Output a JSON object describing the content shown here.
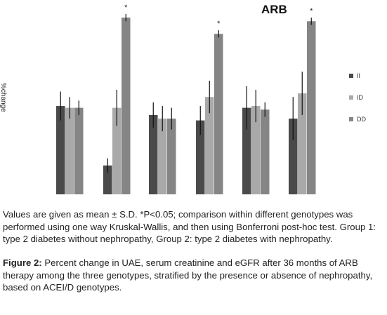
{
  "chart_data": {
    "type": "bar",
    "title": "ARB",
    "ylabel": "%change",
    "xlabel": "",
    "categories": [
      "",
      "",
      "",
      "",
      "",
      ""
    ],
    "ylim": [
      0,
      100
    ],
    "grid": false,
    "legend_position": "right",
    "series": [
      {
        "name": "II",
        "color": "#4a4a4a",
        "values": [
          49,
          16,
          44,
          41,
          48,
          42
        ],
        "errors": [
          8,
          4,
          7,
          8,
          12,
          12
        ]
      },
      {
        "name": "ID",
        "color": "#a9a9a9",
        "values": [
          48,
          48,
          42,
          54,
          49,
          56
        ],
        "errors": [
          6,
          10,
          7,
          9,
          9,
          12
        ]
      },
      {
        "name": "DD",
        "color": "#858585",
        "values": [
          48,
          98,
          42,
          89,
          47,
          96
        ],
        "errors": [
          4,
          2,
          6,
          2,
          4,
          2
        ]
      }
    ],
    "significance": [
      "",
      "*",
      "",
      "*",
      "",
      "*"
    ]
  },
  "note": "Values are given as mean ± S.D. *P<0.05; comparison within different genotypes was performed using one way Kruskal-Wallis, and then using Bonferroni post-hoc test. Group 1: type 2 diabetes without nephropathy, Group 2: type 2 diabetes with nephropathy.",
  "caption": {
    "label": "Figure 2:",
    "text": " Percent change in UAE, serum creatinine and eGFR after 36 months of ARB therapy among the three genotypes, stratified by the presence or absence of nephropathy, based on ACEI/D genotypes."
  }
}
